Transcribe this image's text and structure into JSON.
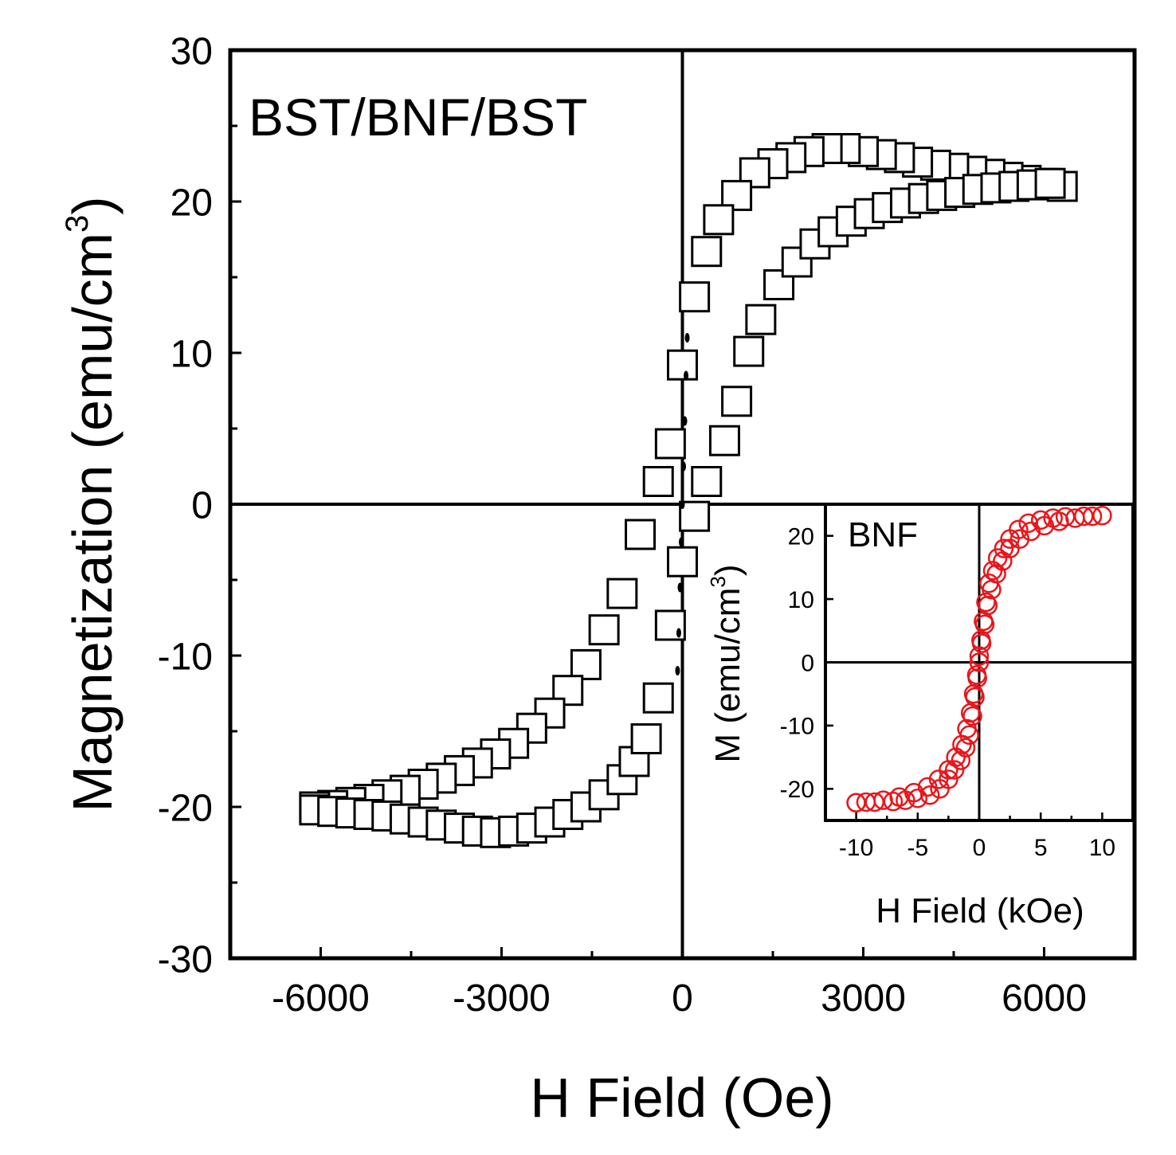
{
  "chart_data": [
    {
      "id": "main",
      "type": "scatter",
      "title": "BST/BNF/BST",
      "xlabel": "H Field (Oe)",
      "ylabel_main": "Magnetization (emu/cm",
      "ylabel_sup": "3",
      "ylabel_close": ")",
      "xlim": [
        -7500,
        7500
      ],
      "ylim": [
        -30,
        30
      ],
      "xticks": [
        "-6000",
        "-3000",
        "0",
        "3000",
        "6000"
      ],
      "yticks": [
        "30",
        "20",
        "10",
        "0",
        "-10",
        "-20",
        "-30"
      ],
      "marker": "open-square",
      "series": [
        {
          "name": "descending",
          "x": [
            6300,
            6000,
            5700,
            5400,
            5100,
            4800,
            4500,
            4200,
            3900,
            3600,
            3300,
            3000,
            2700,
            2400,
            2100,
            1800,
            1500,
            1200,
            900,
            600,
            400,
            200,
            0,
            -200,
            -400,
            -700,
            -1000,
            -1300,
            -1600,
            -1900,
            -2200,
            -2500,
            -2800,
            -3100,
            -3400,
            -3700,
            -4000,
            -4300,
            -4600,
            -4900,
            -5200,
            -5500,
            -5800,
            -6100
          ],
          "y": [
            21.0,
            21.2,
            21.4,
            21.6,
            21.8,
            22.0,
            22.2,
            22.4,
            22.6,
            22.9,
            23.1,
            23.3,
            23.5,
            23.5,
            23.3,
            22.9,
            22.5,
            21.9,
            20.4,
            18.8,
            16.7,
            13.7,
            9.2,
            4.0,
            1.5,
            -2.0,
            -5.9,
            -8.3,
            -10.6,
            -12.3,
            -13.8,
            -14.8,
            -15.8,
            -16.5,
            -17.1,
            -17.6,
            -18.1,
            -18.5,
            -18.9,
            -19.2,
            -19.5,
            -19.7,
            -19.9,
            -20.0
          ]
        },
        {
          "name": "ascending",
          "x": [
            -6100,
            -5800,
            -5500,
            -5200,
            -4900,
            -4600,
            -4300,
            -4000,
            -3700,
            -3400,
            -3100,
            -2800,
            -2500,
            -2200,
            -1900,
            -1600,
            -1300,
            -1000,
            -800,
            -600,
            -400,
            -200,
            0,
            200,
            400,
            700,
            900,
            1100,
            1300,
            1600,
            1900,
            2200,
            2500,
            2800,
            3100,
            3400,
            3700,
            4000,
            4300,
            4600,
            4900,
            5200,
            5500,
            5800,
            6100
          ],
          "y": [
            -20.2,
            -20.3,
            -20.4,
            -20.5,
            -20.6,
            -20.8,
            -21.0,
            -21.2,
            -21.4,
            -21.6,
            -21.7,
            -21.6,
            -21.4,
            -21.0,
            -20.5,
            -20.0,
            -19.2,
            -18.2,
            -17.0,
            -15.5,
            -12.8,
            -8.0,
            -3.8,
            -0.8,
            1.5,
            4.2,
            6.8,
            10.1,
            12.2,
            14.5,
            16.0,
            17.2,
            18.0,
            18.7,
            19.2,
            19.6,
            19.9,
            20.2,
            20.4,
            20.6,
            20.8,
            20.9,
            21.0,
            21.1,
            21.2
          ]
        },
        {
          "name": "substrate-trace",
          "marker": "filled-small",
          "x": [
            -80,
            -60,
            -40,
            -20,
            0,
            20,
            40,
            60,
            80
          ],
          "y": [
            -11.0,
            -8.5,
            -5.5,
            -2.5,
            0,
            2.5,
            5.5,
            8.5,
            11.0
          ]
        }
      ]
    },
    {
      "id": "inset",
      "type": "scatter",
      "title": "BNF",
      "xlabel": "H Field (kOe)",
      "ylabel_main": "M (emu/cm",
      "ylabel_sup": "3",
      "ylabel_close": ")",
      "xlim": [
        -12.5,
        12.5
      ],
      "ylim": [
        -25,
        25
      ],
      "xticks": [
        "-10",
        "-5",
        "0",
        "5",
        "10"
      ],
      "yticks": [
        "20",
        "10",
        "0",
        "-10",
        "-20"
      ],
      "marker": "open-circle",
      "color": "#e8161b",
      "series": [
        {
          "name": "descending",
          "x": [
            10,
            8.5,
            7,
            6,
            5,
            4,
            3.2,
            2.5,
            2,
            1.5,
            1.1,
            0.8,
            0.55,
            0.35,
            0.15,
            0,
            -0.2,
            -0.45,
            -0.7,
            -1.0,
            -1.4,
            -1.9,
            -2.5,
            -3.3,
            -4.2,
            -5.3,
            -6.5,
            -7.8,
            -9.2,
            -10
          ],
          "y": [
            23.2,
            23.1,
            23.0,
            22.8,
            22.5,
            22.0,
            21.0,
            19.5,
            18.0,
            16.5,
            14.5,
            12.5,
            9.5,
            6.5,
            3.5,
            1.0,
            -2.0,
            -5.0,
            -8.0,
            -10.5,
            -13.0,
            -15.0,
            -17.0,
            -18.5,
            -19.7,
            -20.6,
            -21.3,
            -21.8,
            -22.1,
            -22.2
          ]
        },
        {
          "name": "ascending",
          "x": [
            -10,
            -8.5,
            -7,
            -6,
            -5,
            -4,
            -3.2,
            -2.5,
            -2,
            -1.5,
            -1.1,
            -0.8,
            -0.55,
            -0.35,
            -0.15,
            0,
            0.2,
            0.45,
            0.7,
            1.0,
            1.4,
            1.9,
            2.5,
            3.3,
            4.2,
            5.3,
            6.5,
            7.8,
            9.2
          ],
          "y": [
            -22.2,
            -22.1,
            -22.0,
            -21.8,
            -21.5,
            -21.0,
            -20.0,
            -18.5,
            -17.0,
            -15.5,
            -13.5,
            -11.5,
            -8.5,
            -5.5,
            -2.5,
            0.0,
            3.0,
            6.0,
            9.0,
            11.5,
            14.0,
            16.0,
            18.0,
            19.5,
            20.7,
            21.6,
            22.3,
            22.8,
            23.1
          ]
        }
      ]
    }
  ]
}
